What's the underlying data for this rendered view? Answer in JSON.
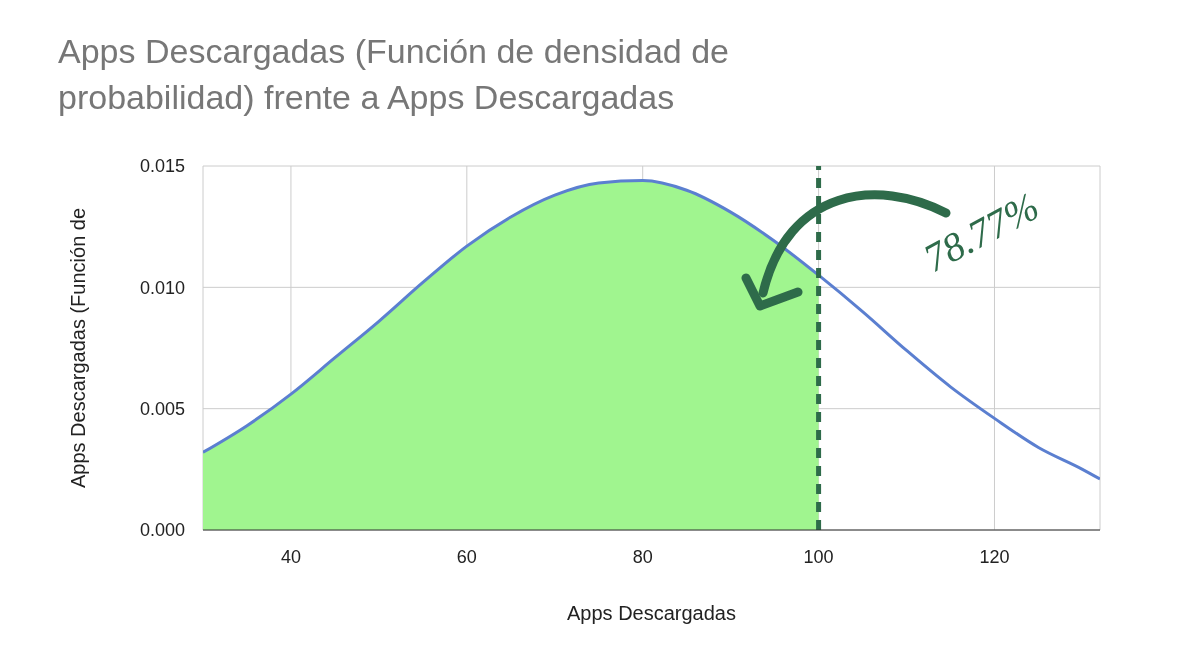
{
  "chart_data": {
    "type": "line",
    "title": "Apps Descargadas (Función de densidad de probabilidad) frente a Apps Descargadas",
    "xlabel": "Apps Descargadas",
    "ylabel": "Apps Descargadas (Función de",
    "x": [
      30,
      35,
      40,
      45,
      50,
      55,
      60,
      65,
      70,
      75,
      80,
      85,
      90,
      95,
      100,
      105,
      110,
      115,
      120,
      125,
      130,
      132
    ],
    "series": [
      {
        "type": "area",
        "color": "#a0f58f",
        "x": [
          30,
          35,
          40,
          45,
          50,
          55,
          60,
          65,
          70,
          75,
          80,
          85,
          90,
          95,
          100
        ],
        "values": [
          0.0032,
          0.0043,
          0.0056,
          0.0071,
          0.0086,
          0.0102,
          0.0117,
          0.0129,
          0.0138,
          0.0143,
          0.0144,
          0.014,
          0.0131,
          0.0119,
          0.0105
        ]
      },
      {
        "color": "#5b7fd0",
        "values": [
          0.0032,
          0.0043,
          0.0056,
          0.0071,
          0.0086,
          0.0102,
          0.0117,
          0.0129,
          0.0138,
          0.0143,
          0.0144,
          0.014,
          0.0131,
          0.0119,
          0.0105,
          0.009,
          0.0074,
          0.0059,
          0.0046,
          0.0034,
          0.0025,
          0.0021
        ]
      }
    ],
    "xlim": [
      30,
      132
    ],
    "xticks": [
      40,
      60,
      80,
      100,
      120
    ],
    "ylim": [
      0,
      0.015
    ],
    "yticks": [
      {
        "value": 0,
        "label": "0.000"
      },
      {
        "value": 0.005,
        "label": "0.005"
      },
      {
        "value": 0.01,
        "label": "0.010"
      },
      {
        "value": 0.015,
        "label": "0.015"
      }
    ],
    "ref_lines": [
      {
        "axis": "x",
        "value": 100,
        "color": "#2e6b4a",
        "line_style": "dashed"
      }
    ],
    "annotations": [
      "78.77%"
    ],
    "grid": true,
    "legend": false,
    "marker": "none",
    "line_style": "solid"
  }
}
